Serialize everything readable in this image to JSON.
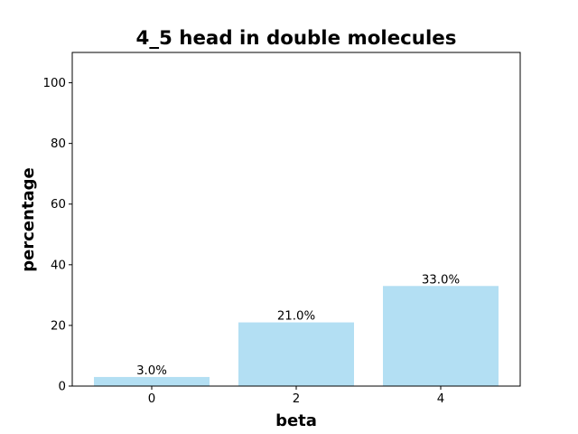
{
  "chart_data": {
    "type": "bar",
    "title": "4_5 head in double molecules",
    "xlabel": "beta",
    "ylabel": "percentage",
    "categories": [
      "0",
      "2",
      "4"
    ],
    "x": [
      0,
      2,
      4
    ],
    "values": [
      3.0,
      21.0,
      33.0
    ],
    "data_labels": [
      "3.0%",
      "21.0%",
      "33.0%"
    ],
    "yticks": [
      0,
      20,
      40,
      60,
      80,
      100
    ],
    "ylim": [
      0,
      110
    ],
    "xlim": [
      -1.1,
      5.1
    ],
    "bar_color": "#b3dff3",
    "grid": false,
    "legend": "none"
  }
}
